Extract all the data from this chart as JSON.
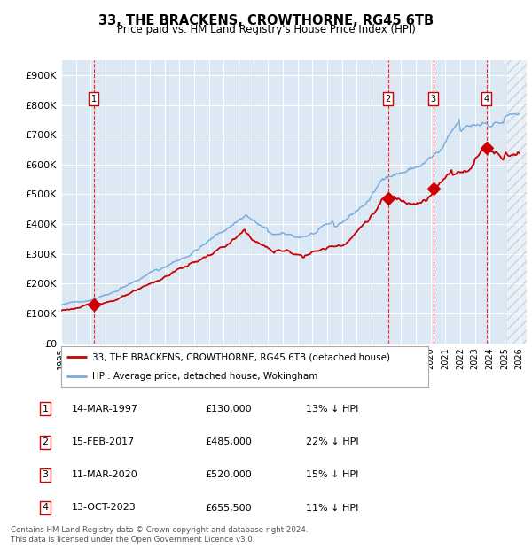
{
  "title": "33, THE BRACKENS, CROWTHORNE, RG45 6TB",
  "subtitle": "Price paid vs. HM Land Registry's House Price Index (HPI)",
  "footer1": "Contains HM Land Registry data © Crown copyright and database right 2024.",
  "footer2": "This data is licensed under the Open Government Licence v3.0.",
  "legend_red": "33, THE BRACKENS, CROWTHORNE, RG45 6TB (detached house)",
  "legend_blue": "HPI: Average price, detached house, Wokingham",
  "transactions": [
    {
      "num": 1,
      "date": "14-MAR-1997",
      "price": 130000,
      "year": 1997.2,
      "pct": "13%",
      "dir": "↓"
    },
    {
      "num": 2,
      "date": "15-FEB-2017",
      "price": 485000,
      "year": 2017.12,
      "pct": "22%",
      "dir": "↓"
    },
    {
      "num": 3,
      "date": "11-MAR-2020",
      "price": 520000,
      "year": 2020.19,
      "pct": "15%",
      "dir": "↓"
    },
    {
      "num": 4,
      "date": "13-OCT-2023",
      "price": 655500,
      "year": 2023.78,
      "pct": "11%",
      "dir": "↓"
    }
  ],
  "hpi_color": "#7aaddc",
  "price_color": "#cc0000",
  "plot_bg": "#dce9f5",
  "xmin": 1995.0,
  "xmax": 2026.5,
  "ymin": 0,
  "ymax": 950000,
  "yticks": [
    0,
    100000,
    200000,
    300000,
    400000,
    500000,
    600000,
    700000,
    800000,
    900000
  ],
  "ytick_labels": [
    "£0",
    "£100K",
    "£200K",
    "£300K",
    "£400K",
    "£500K",
    "£600K",
    "£700K",
    "£800K",
    "£900K"
  ],
  "xticks": [
    1995,
    1996,
    1997,
    1998,
    1999,
    2000,
    2001,
    2002,
    2003,
    2004,
    2005,
    2006,
    2007,
    2008,
    2009,
    2010,
    2011,
    2012,
    2013,
    2014,
    2015,
    2016,
    2017,
    2018,
    2019,
    2020,
    2021,
    2022,
    2023,
    2024,
    2025,
    2026
  ]
}
